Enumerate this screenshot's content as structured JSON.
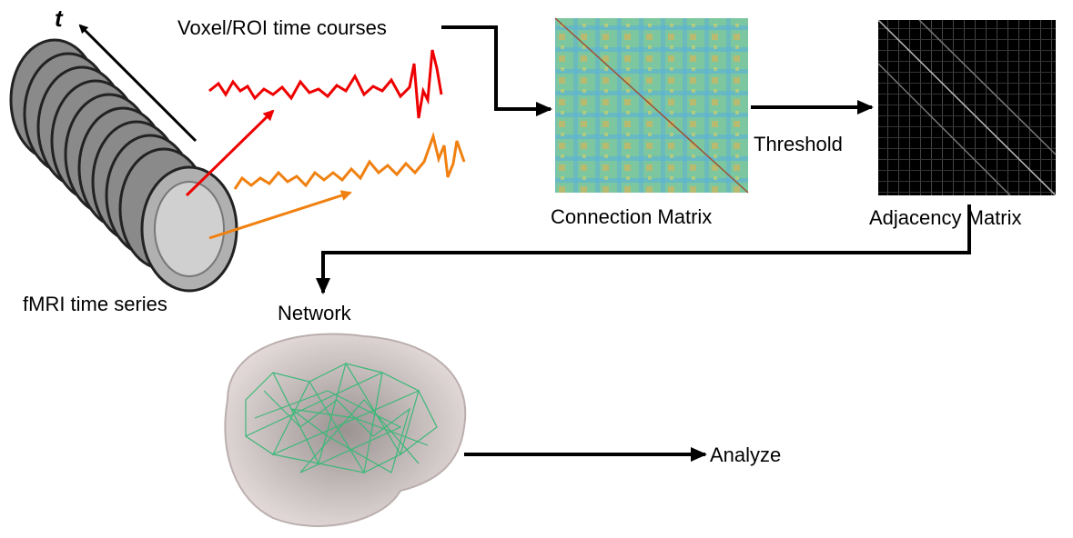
{
  "labels": {
    "time_axis": "t",
    "time_courses": "Voxel/ROI time courses",
    "fmri": "fMRI time series",
    "connection_matrix": "Connection Matrix",
    "threshold": "Threshold",
    "adjacency_matrix": "Adjacency Matrix",
    "network": "Network",
    "analyze": "Analyze"
  }
}
